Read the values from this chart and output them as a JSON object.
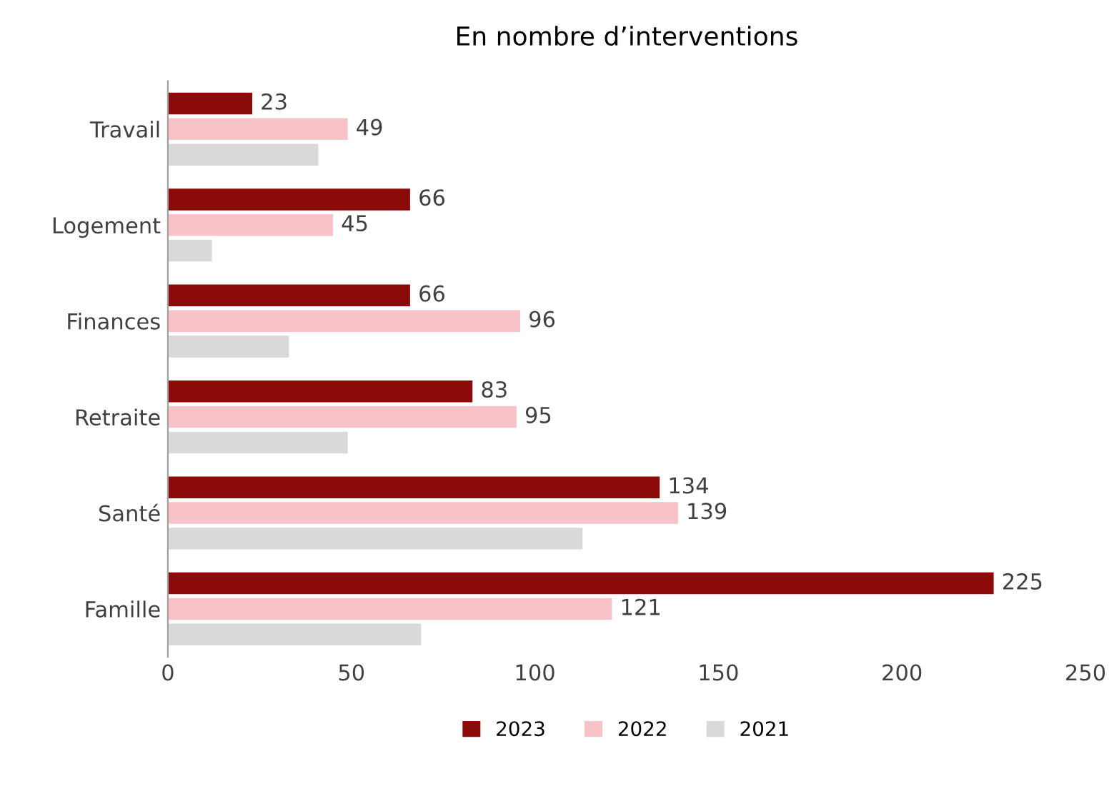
{
  "chart_data": {
    "type": "bar",
    "orientation": "horizontal",
    "title": "En nombre d’interventions",
    "categories": [
      "Travail",
      "Logement",
      "Finances",
      "Retraite",
      "Santé",
      "Famille"
    ],
    "series": [
      {
        "name": "2023",
        "color": "#8b0a0a",
        "values": [
          23,
          66,
          66,
          83,
          134,
          225
        ],
        "value_labels": [
          "23",
          "66",
          "66",
          "83",
          "134",
          "225"
        ]
      },
      {
        "name": "2022",
        "color": "#f7c3c8",
        "values": [
          49,
          45,
          96,
          95,
          139,
          121
        ],
        "value_labels": [
          "49",
          "45",
          "96",
          "95",
          "139",
          "121"
        ]
      },
      {
        "name": "2021",
        "color": "#d9d9d9",
        "values": [
          41,
          12,
          33,
          49,
          113,
          69
        ]
      }
    ],
    "xlim": [
      0,
      250
    ],
    "xticks": [
      0,
      50,
      100,
      150,
      200,
      250
    ],
    "grid": false,
    "legend": "bottom"
  }
}
